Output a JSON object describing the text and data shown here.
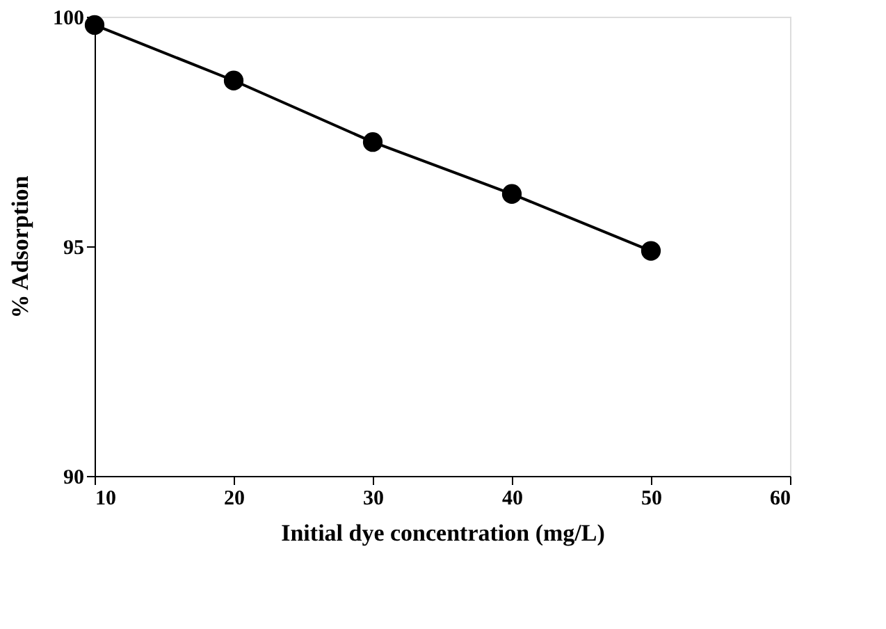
{
  "chart_data": {
    "type": "line",
    "xlabel": "Initial dye concentration (mg/L)",
    "ylabel": "%  Adsorption",
    "x": [
      10,
      20,
      30,
      40,
      50
    ],
    "series": [
      {
        "color": "#000000",
        "values": [
          99.82,
          98.61,
          97.27,
          96.14,
          94.9
        ]
      }
    ],
    "xlim": [
      10,
      60
    ],
    "xticks": [
      10,
      20,
      30,
      40,
      50,
      60
    ],
    "ylim": [
      90,
      100
    ],
    "yticks": [
      90,
      95,
      100
    ],
    "grid": false,
    "legend": false,
    "marker": "circle",
    "line_style": "solid"
  }
}
